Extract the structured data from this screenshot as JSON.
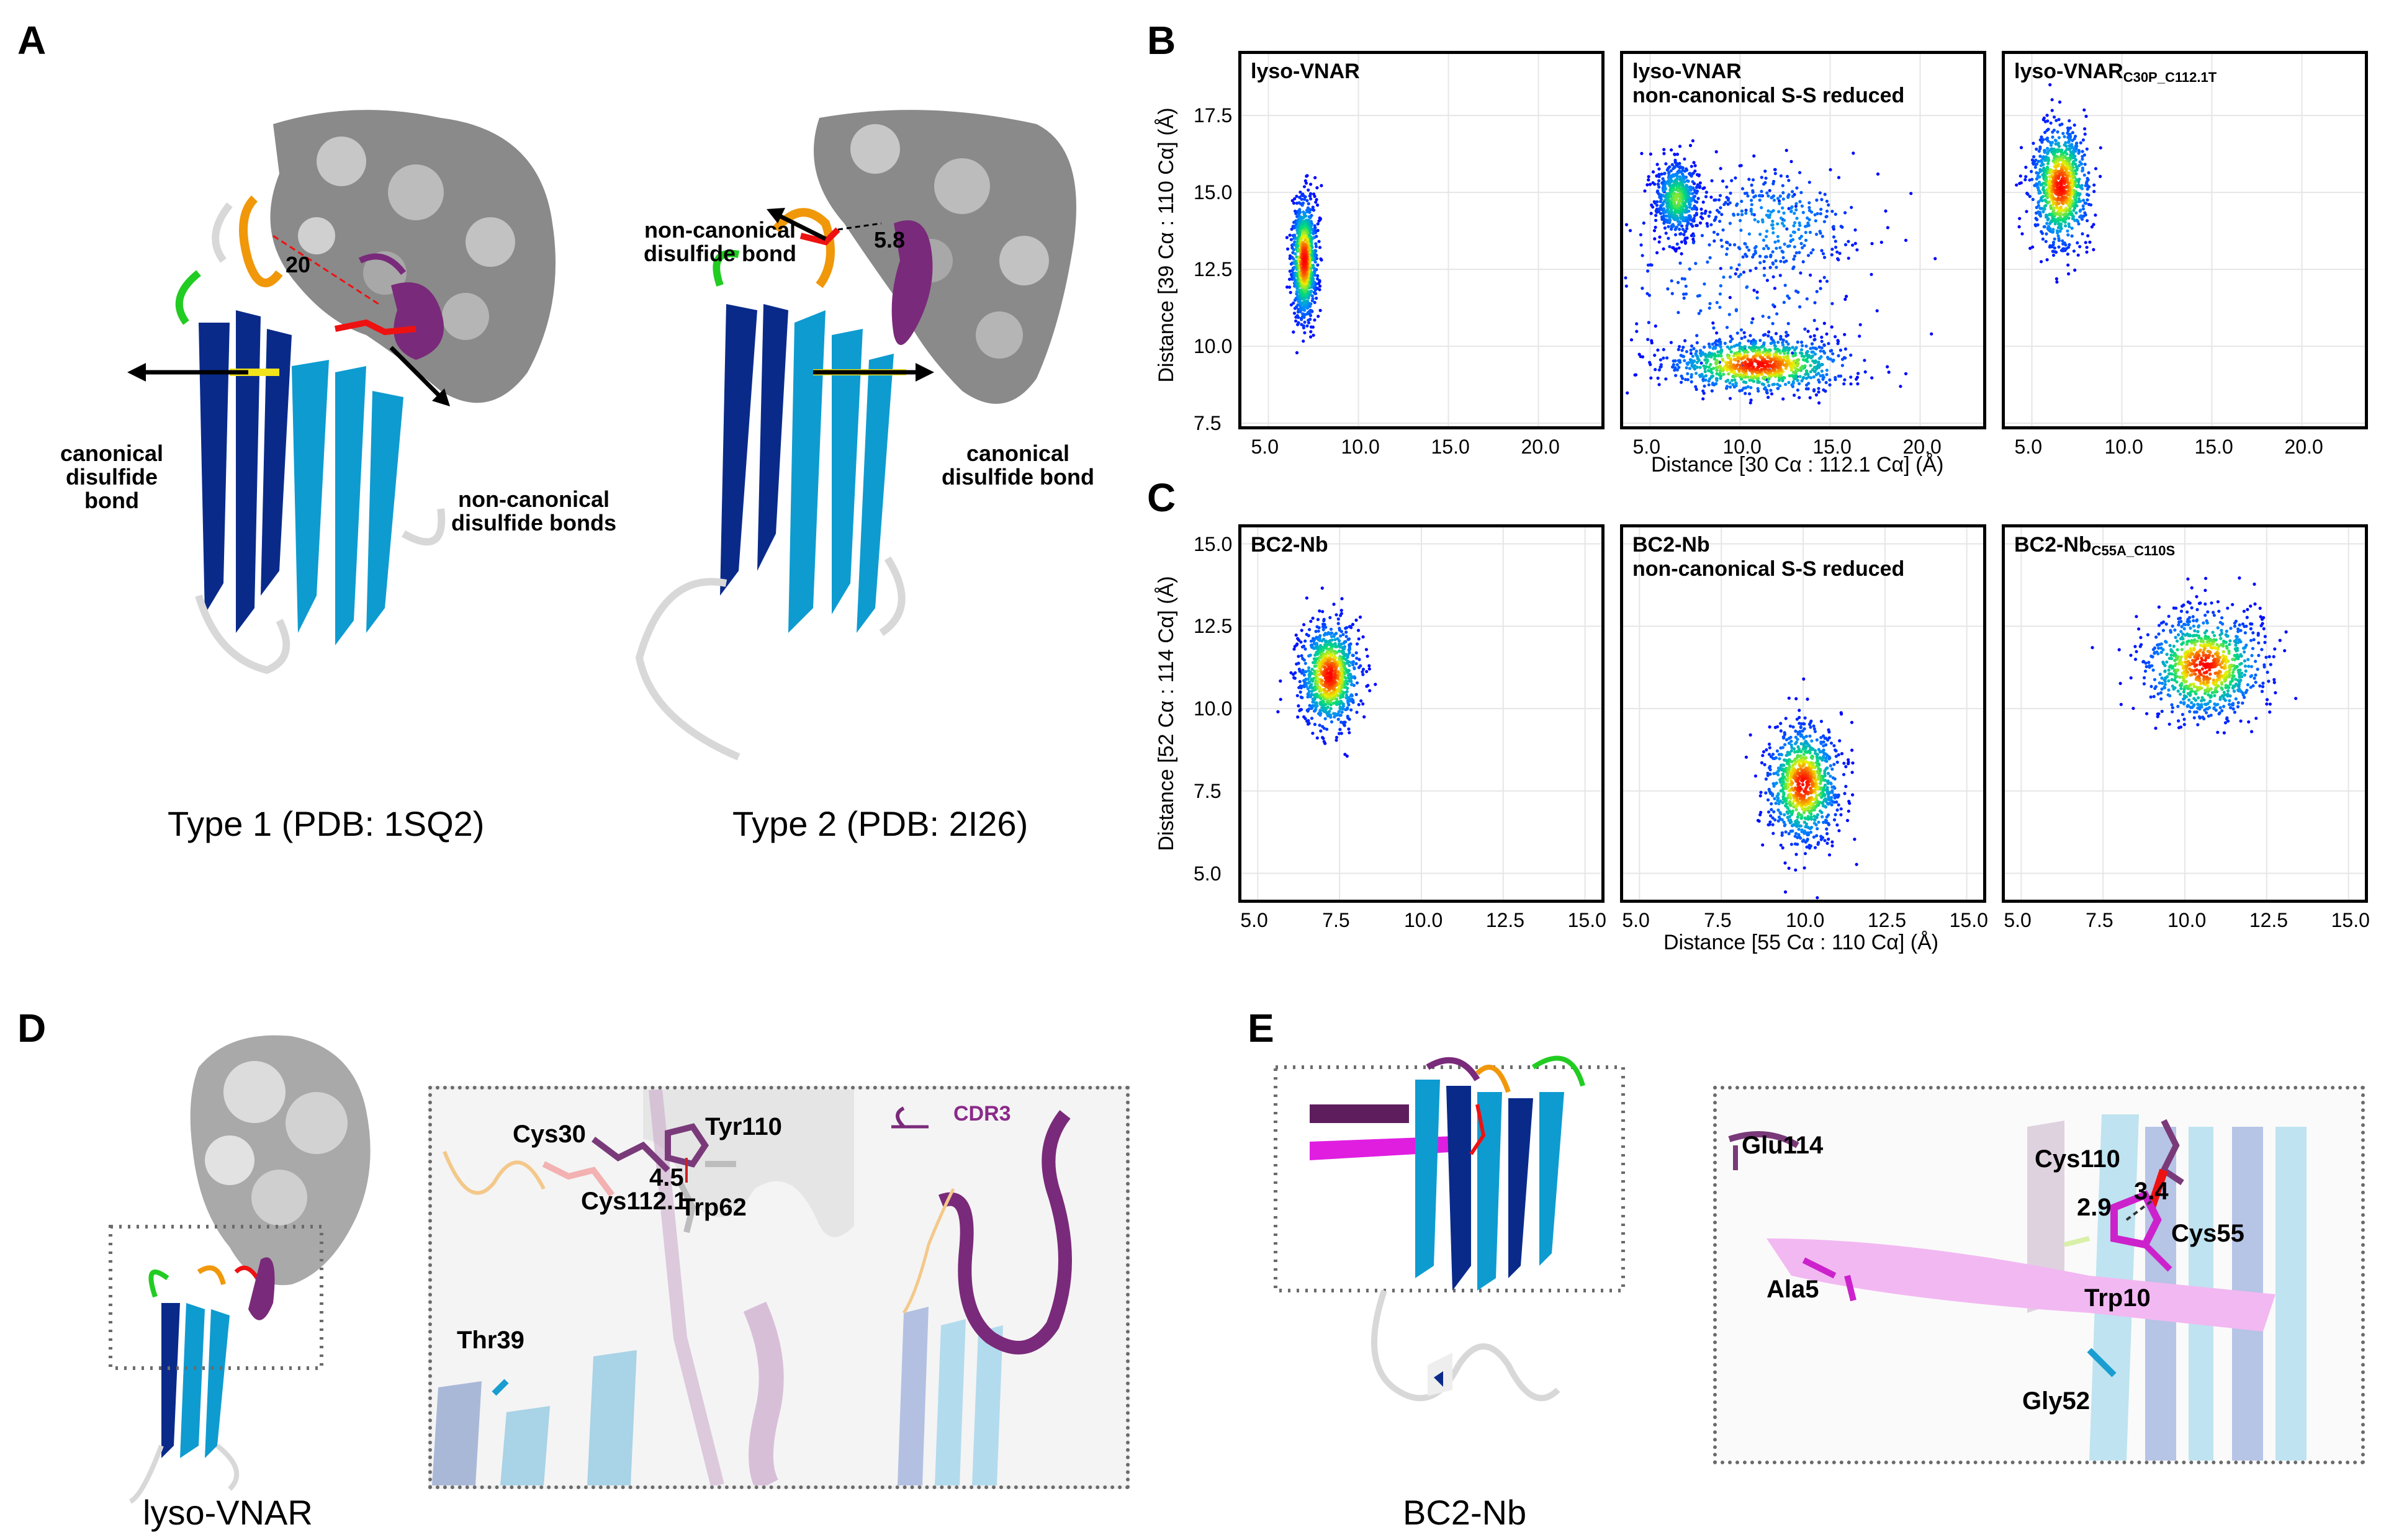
{
  "panels": {
    "a": "A",
    "b": "B",
    "c": "C",
    "d": "D",
    "e": "E"
  },
  "panelA": {
    "type1_caption": "Type 1 (PDB: 1SQ2)",
    "type2_caption": "Type 2 (PDB: 2I26)",
    "dist_type1": "20",
    "dist_type2": "5.8",
    "canonical_left": "canonical\ndisulfide bond",
    "noncanonical_bonds": "non-canonical\ndisulfide bonds",
    "noncanonical_bond": "non-canonical\ndisulfide bond",
    "canonical_right": "canonical\ndisulfide bond"
  },
  "panelB": {
    "ylabel": "Distance [39 Cα : 110 Cα] (Å)",
    "xlabel": "Distance [30 Cα : 112.1 Cα] (Å)",
    "titles": [
      {
        "main": "lyso-VNAR",
        "line2": "",
        "sub": ""
      },
      {
        "main": "lyso-VNAR",
        "line2": "non-canonical S-S reduced",
        "sub": ""
      },
      {
        "main": "lyso-VNAR",
        "line2": "",
        "sub": "C30P_C112.1T"
      }
    ],
    "xticks": [
      "5.0",
      "10.0",
      "15.0",
      "20.0"
    ],
    "yticks": [
      "7.5",
      "10.0",
      "12.5",
      "15.0",
      "17.5"
    ]
  },
  "panelC": {
    "ylabel": "Distance [52 Cα : 114 Cα] (Å)",
    "xlabel": "Distance [55 Cα : 110 Cα] (Å)",
    "titles": [
      {
        "main": "BC2-Nb",
        "line2": "",
        "sub": ""
      },
      {
        "main": "BC2-Nb",
        "line2": "non-canonical S-S reduced",
        "sub": ""
      },
      {
        "main": "BC2-Nb",
        "line2": "",
        "sub": "C55A_C110S"
      }
    ],
    "xticks": [
      "5.0",
      "7.5",
      "10.0",
      "12.5",
      "15.0"
    ],
    "yticks": [
      "5.0",
      "7.5",
      "10.0",
      "12.5",
      "15.0"
    ]
  },
  "panelD": {
    "caption": "lyso-VNAR",
    "cys30": "Cys30",
    "tyr110": "Tyr110",
    "dist": "4.5",
    "cys112": "Cys112.1",
    "trp62": "Trp62",
    "thr39": "Thr39",
    "cdr3": "CDR3"
  },
  "panelE": {
    "caption": "BC2-Nb",
    "glu114": "Glu114",
    "cys110": "Cys110",
    "dist1": "2.9",
    "dist2": "3.4",
    "cys55": "Cys55",
    "ala5": "Ala5",
    "trp10": "Trp10",
    "gly52": "Gly52"
  },
  "chart_data": [
    {
      "type": "scatter",
      "panel": "B",
      "title": "lyso-VNAR",
      "xlabel": "Distance [30 Cα : 112.1 Cα] (Å)",
      "ylabel": "Distance [39 Cα : 110 Cα] (Å)",
      "xlim": [
        3.5,
        23.5
      ],
      "ylim": [
        7.4,
        19.5
      ],
      "clusters": [
        {
          "x": 7.0,
          "y": 12.8,
          "sx": 0.35,
          "sy": 1.0,
          "n": 900
        }
      ]
    },
    {
      "type": "scatter",
      "panel": "B",
      "title": "lyso-VNAR non-canonical S-S reduced",
      "xlabel": "Distance [30 Cα : 112.1 Cα] (Å)",
      "ylabel": "Distance [39 Cα : 110 Cα] (Å)",
      "xlim": [
        3.5,
        23.5
      ],
      "ylim": [
        7.4,
        19.5
      ],
      "clusters": [
        {
          "x": 6.5,
          "y": 14.8,
          "sx": 0.6,
          "sy": 0.6,
          "n": 600
        },
        {
          "x": 11.0,
          "y": 9.4,
          "sx": 2.5,
          "sy": 0.45,
          "n": 900
        },
        {
          "x": 12.0,
          "y": 14.0,
          "sx": 2.5,
          "sy": 1.0,
          "n": 300
        },
        {
          "x": 10.0,
          "y": 12.0,
          "sx": 4.0,
          "sy": 2.0,
          "n": 200
        }
      ]
    },
    {
      "type": "scatter",
      "panel": "B",
      "title": "lyso-VNAR C30P_C112.1T",
      "xlabel": "Distance [30 Cα : 112.1 Cα] (Å)",
      "ylabel": "Distance [39 Cα : 110 Cα] (Å)",
      "xlim": [
        3.5,
        23.5
      ],
      "ylim": [
        7.4,
        19.5
      ],
      "clusters": [
        {
          "x": 6.6,
          "y": 15.2,
          "sx": 0.8,
          "sy": 1.0,
          "n": 900
        }
      ]
    },
    {
      "type": "scatter",
      "panel": "C",
      "title": "BC2-Nb",
      "xlabel": "Distance [55 Cα : 110 Cα] (Å)",
      "ylabel": "Distance [52 Cα : 114 Cα] (Å)",
      "xlim": [
        4.5,
        15.5
      ],
      "ylim": [
        4.2,
        15.5
      ],
      "clusters": [
        {
          "x": 7.2,
          "y": 11.0,
          "sx": 0.45,
          "sy": 0.8,
          "n": 900
        }
      ]
    },
    {
      "type": "scatter",
      "panel": "C",
      "title": "BC2-Nb non-canonical S-S reduced",
      "xlabel": "Distance [55 Cα : 110 Cα] (Å)",
      "ylabel": "Distance [52 Cα : 114 Cα] (Å)",
      "xlim": [
        4.5,
        15.5
      ],
      "ylim": [
        4.2,
        15.5
      ],
      "clusters": [
        {
          "x": 10.0,
          "y": 7.7,
          "sx": 0.55,
          "sy": 0.9,
          "n": 900
        }
      ]
    },
    {
      "type": "scatter",
      "panel": "C",
      "title": "BC2-Nb C55A_C110S",
      "xlabel": "Distance [55 Cα : 110 Cα] (Å)",
      "ylabel": "Distance [52 Cα : 114 Cα] (Å)",
      "xlim": [
        4.5,
        15.5
      ],
      "ylim": [
        4.2,
        15.5
      ],
      "clusters": [
        {
          "x": 10.6,
          "y": 11.3,
          "sx": 0.9,
          "sy": 0.8,
          "n": 900
        }
      ]
    }
  ]
}
